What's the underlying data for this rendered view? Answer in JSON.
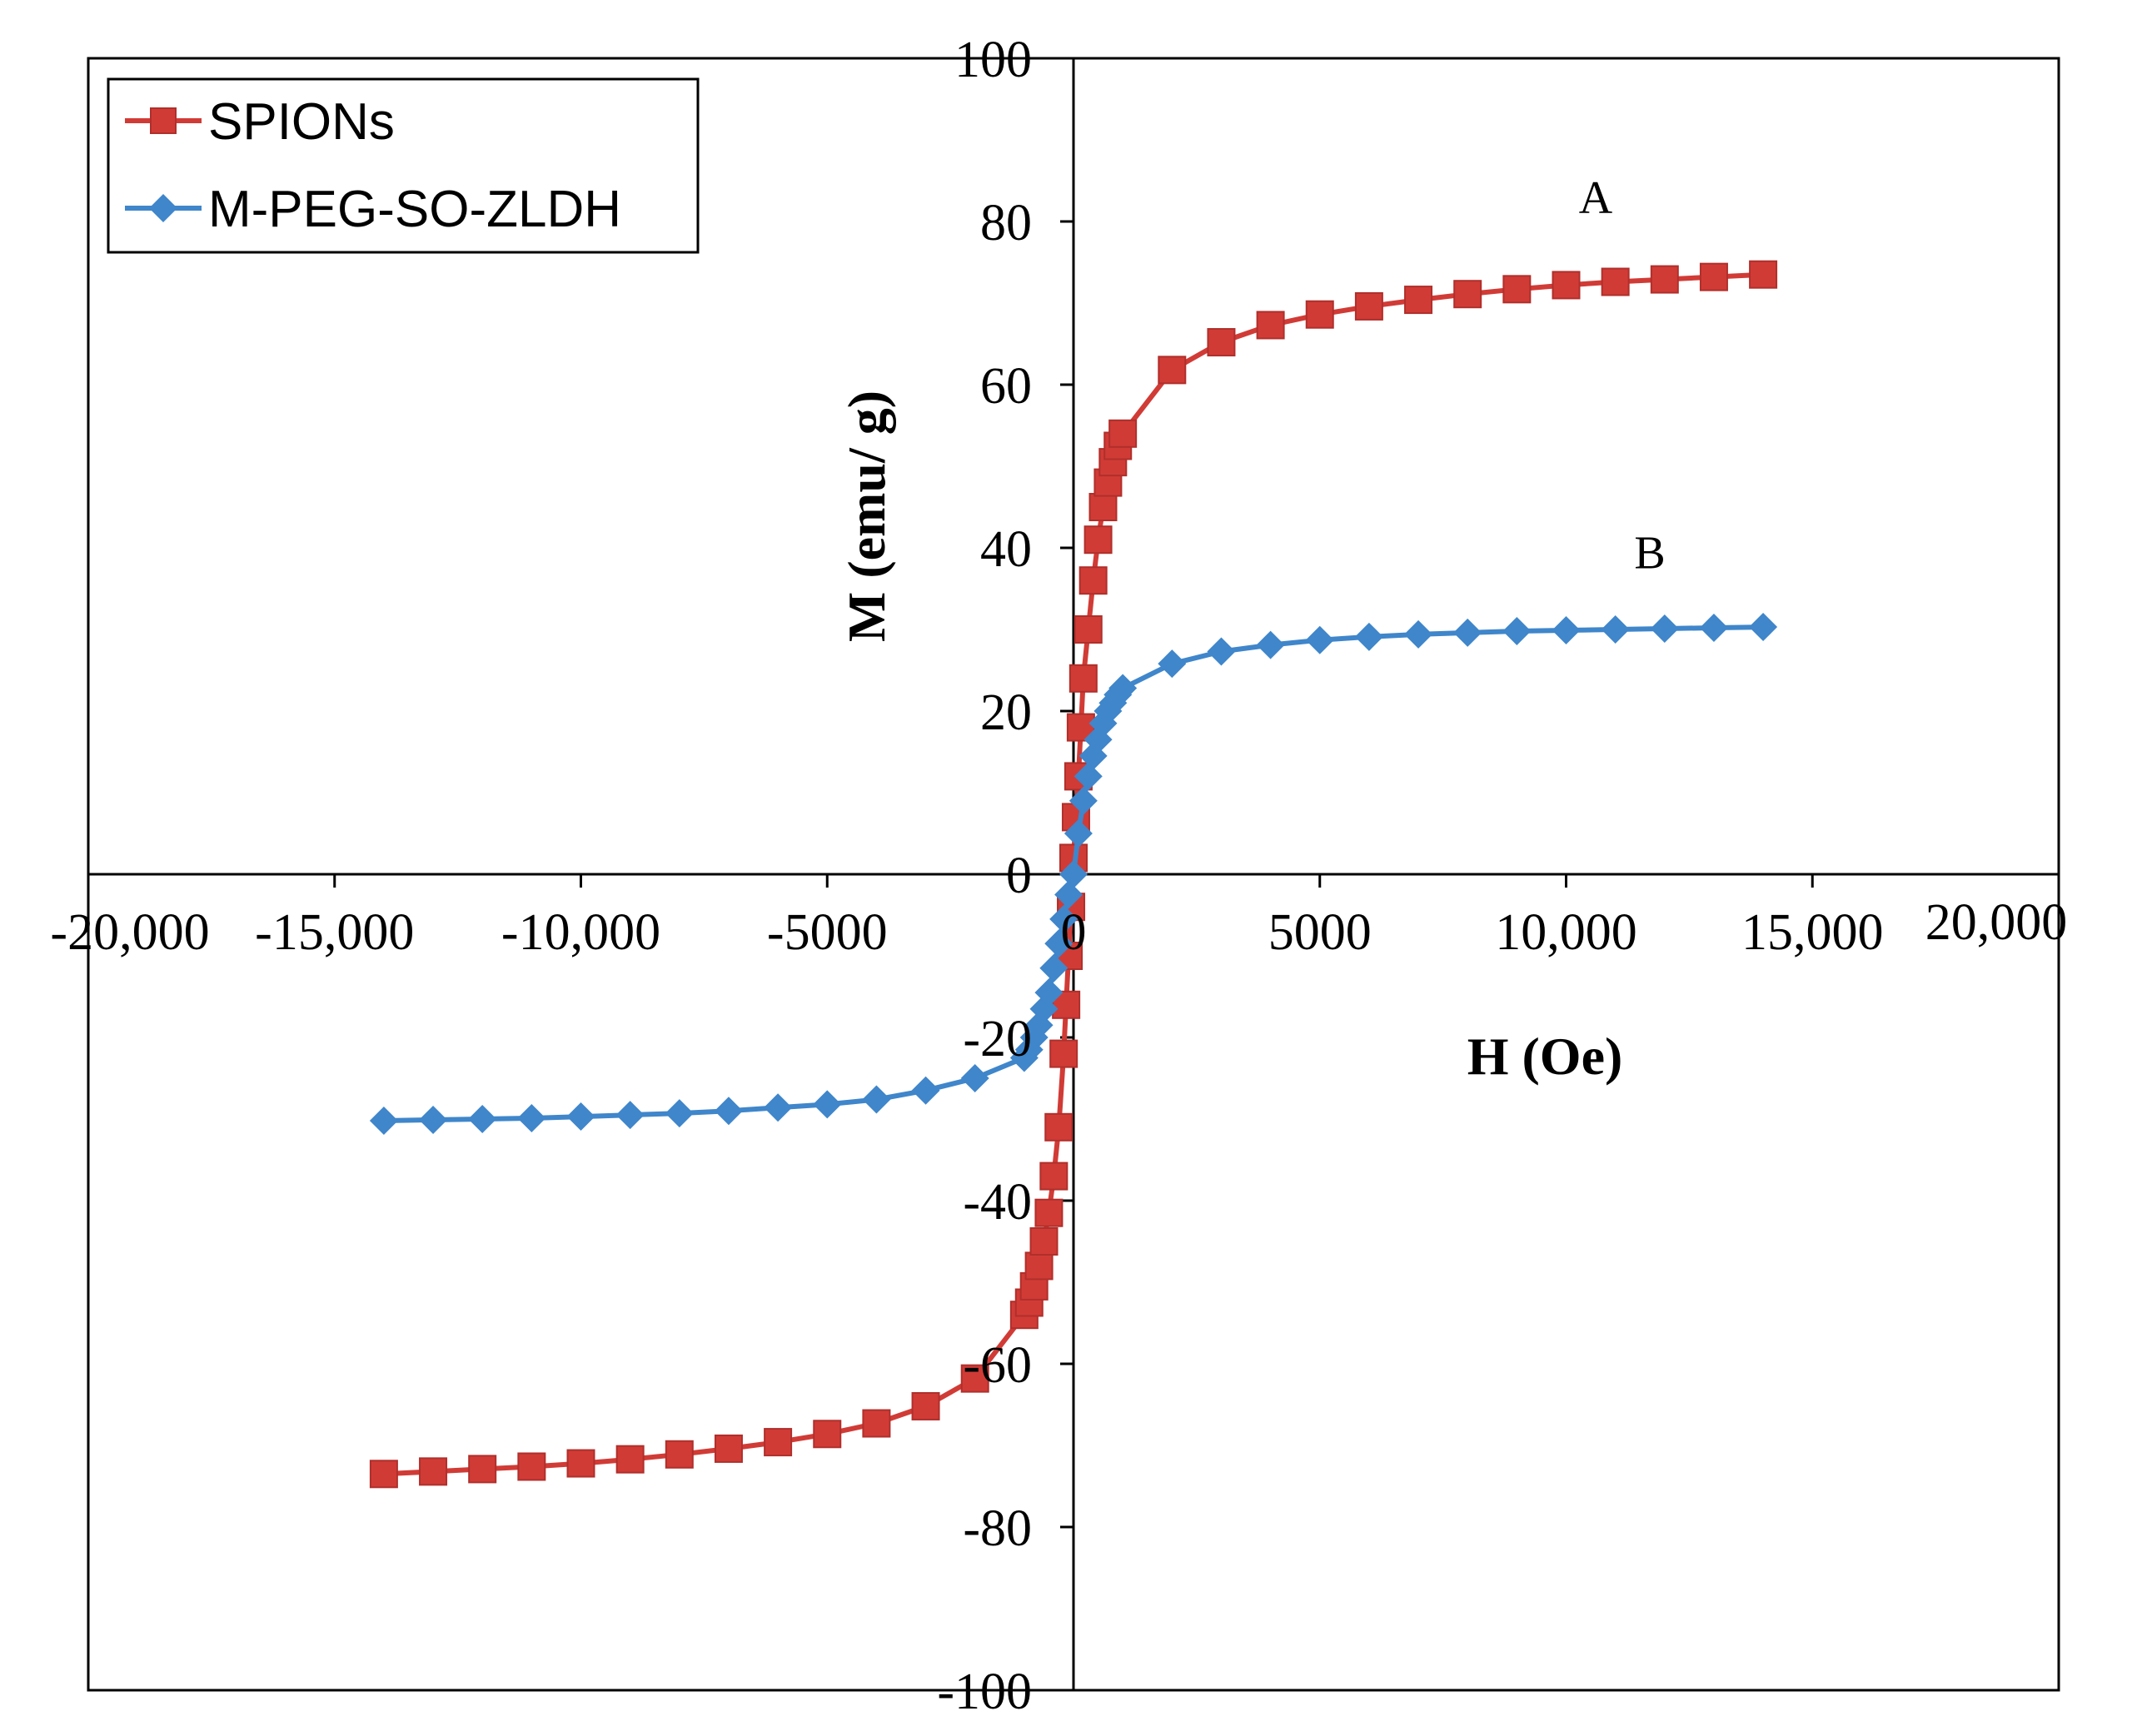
{
  "chart_data": {
    "type": "line",
    "title": "",
    "xlabel": "H (Oe)",
    "ylabel": "M (emu/ g)",
    "xlim": [
      -20000,
      20000
    ],
    "ylim": [
      -100,
      100
    ],
    "x_tick_labels": [
      "-20,000",
      "-15,000",
      "-10,000",
      "-5000",
      "0",
      "5000",
      "10,000",
      "15,000",
      "20,000"
    ],
    "y_tick_labels": [
      "100",
      "80",
      "60",
      "40",
      "20",
      "0",
      "-20",
      "-40",
      "-60",
      "-80",
      "-100"
    ],
    "legend_position": "top-left",
    "annotations": [
      {
        "text": "A",
        "x": 10600,
        "y": 81
      },
      {
        "text": "B",
        "x": 11700,
        "y": 37.5
      }
    ],
    "series": [
      {
        "name": "SPIONs",
        "color": "#d13b36",
        "marker": "square",
        "x": [
          -14000,
          -13000,
          -12000,
          -11000,
          -10000,
          -9000,
          -8000,
          -7000,
          -6000,
          -5000,
          -4000,
          -3000,
          -2000,
          -1000,
          -900,
          -800,
          -700,
          -600,
          -500,
          -400,
          -300,
          -200,
          -150,
          -100,
          -50,
          0,
          50,
          100,
          150,
          200,
          300,
          400,
          500,
          600,
          700,
          800,
          900,
          1000,
          2000,
          3000,
          4000,
          5000,
          6000,
          7000,
          8000,
          9000,
          10000,
          11000,
          12000,
          13000,
          14000
        ],
        "y": [
          -73.5,
          -73.2,
          -72.9,
          -72.6,
          -72.2,
          -71.7,
          -71.1,
          -70.4,
          -69.6,
          -68.6,
          -67.3,
          -65.2,
          -61.8,
          -54,
          -52.5,
          -50.5,
          -48,
          -45,
          -41.5,
          -37,
          -31,
          -22,
          -16,
          -10,
          -4,
          2,
          7,
          12,
          18,
          24,
          30,
          36,
          41,
          45,
          48,
          50.5,
          52.5,
          54,
          61.8,
          65.2,
          67.3,
          68.6,
          69.6,
          70.4,
          71.1,
          71.7,
          72.2,
          72.6,
          72.9,
          73.2,
          73.5
        ]
      },
      {
        "name": "M-PEG-SO-ZLDH",
        "color": "#3f86cb",
        "marker": "diamond",
        "x": [
          -14000,
          -13000,
          -12000,
          -11000,
          -10000,
          -9000,
          -8000,
          -7000,
          -6000,
          -5000,
          -4000,
          -3000,
          -2000,
          -1000,
          -900,
          -800,
          -700,
          -600,
          -500,
          -400,
          -300,
          -200,
          -100,
          0,
          100,
          200,
          300,
          400,
          500,
          600,
          700,
          800,
          900,
          1000,
          2000,
          3000,
          4000,
          5000,
          6000,
          7000,
          8000,
          9000,
          10000,
          11000,
          12000,
          13000,
          14000
        ],
        "y": [
          -30.2,
          -30.1,
          -30,
          -29.9,
          -29.7,
          -29.5,
          -29.3,
          -29,
          -28.6,
          -28.2,
          -27.6,
          -26.5,
          -25,
          -22.5,
          -21.5,
          -20,
          -18.5,
          -16.5,
          -14.5,
          -11.5,
          -8.5,
          -5.5,
          -2.5,
          0,
          5,
          9,
          12,
          14.5,
          16.5,
          18.5,
          20,
          21,
          22,
          22.8,
          25.8,
          27.3,
          28.1,
          28.7,
          29.1,
          29.4,
          29.6,
          29.8,
          29.9,
          30,
          30.1,
          30.2,
          30.3
        ]
      }
    ]
  }
}
